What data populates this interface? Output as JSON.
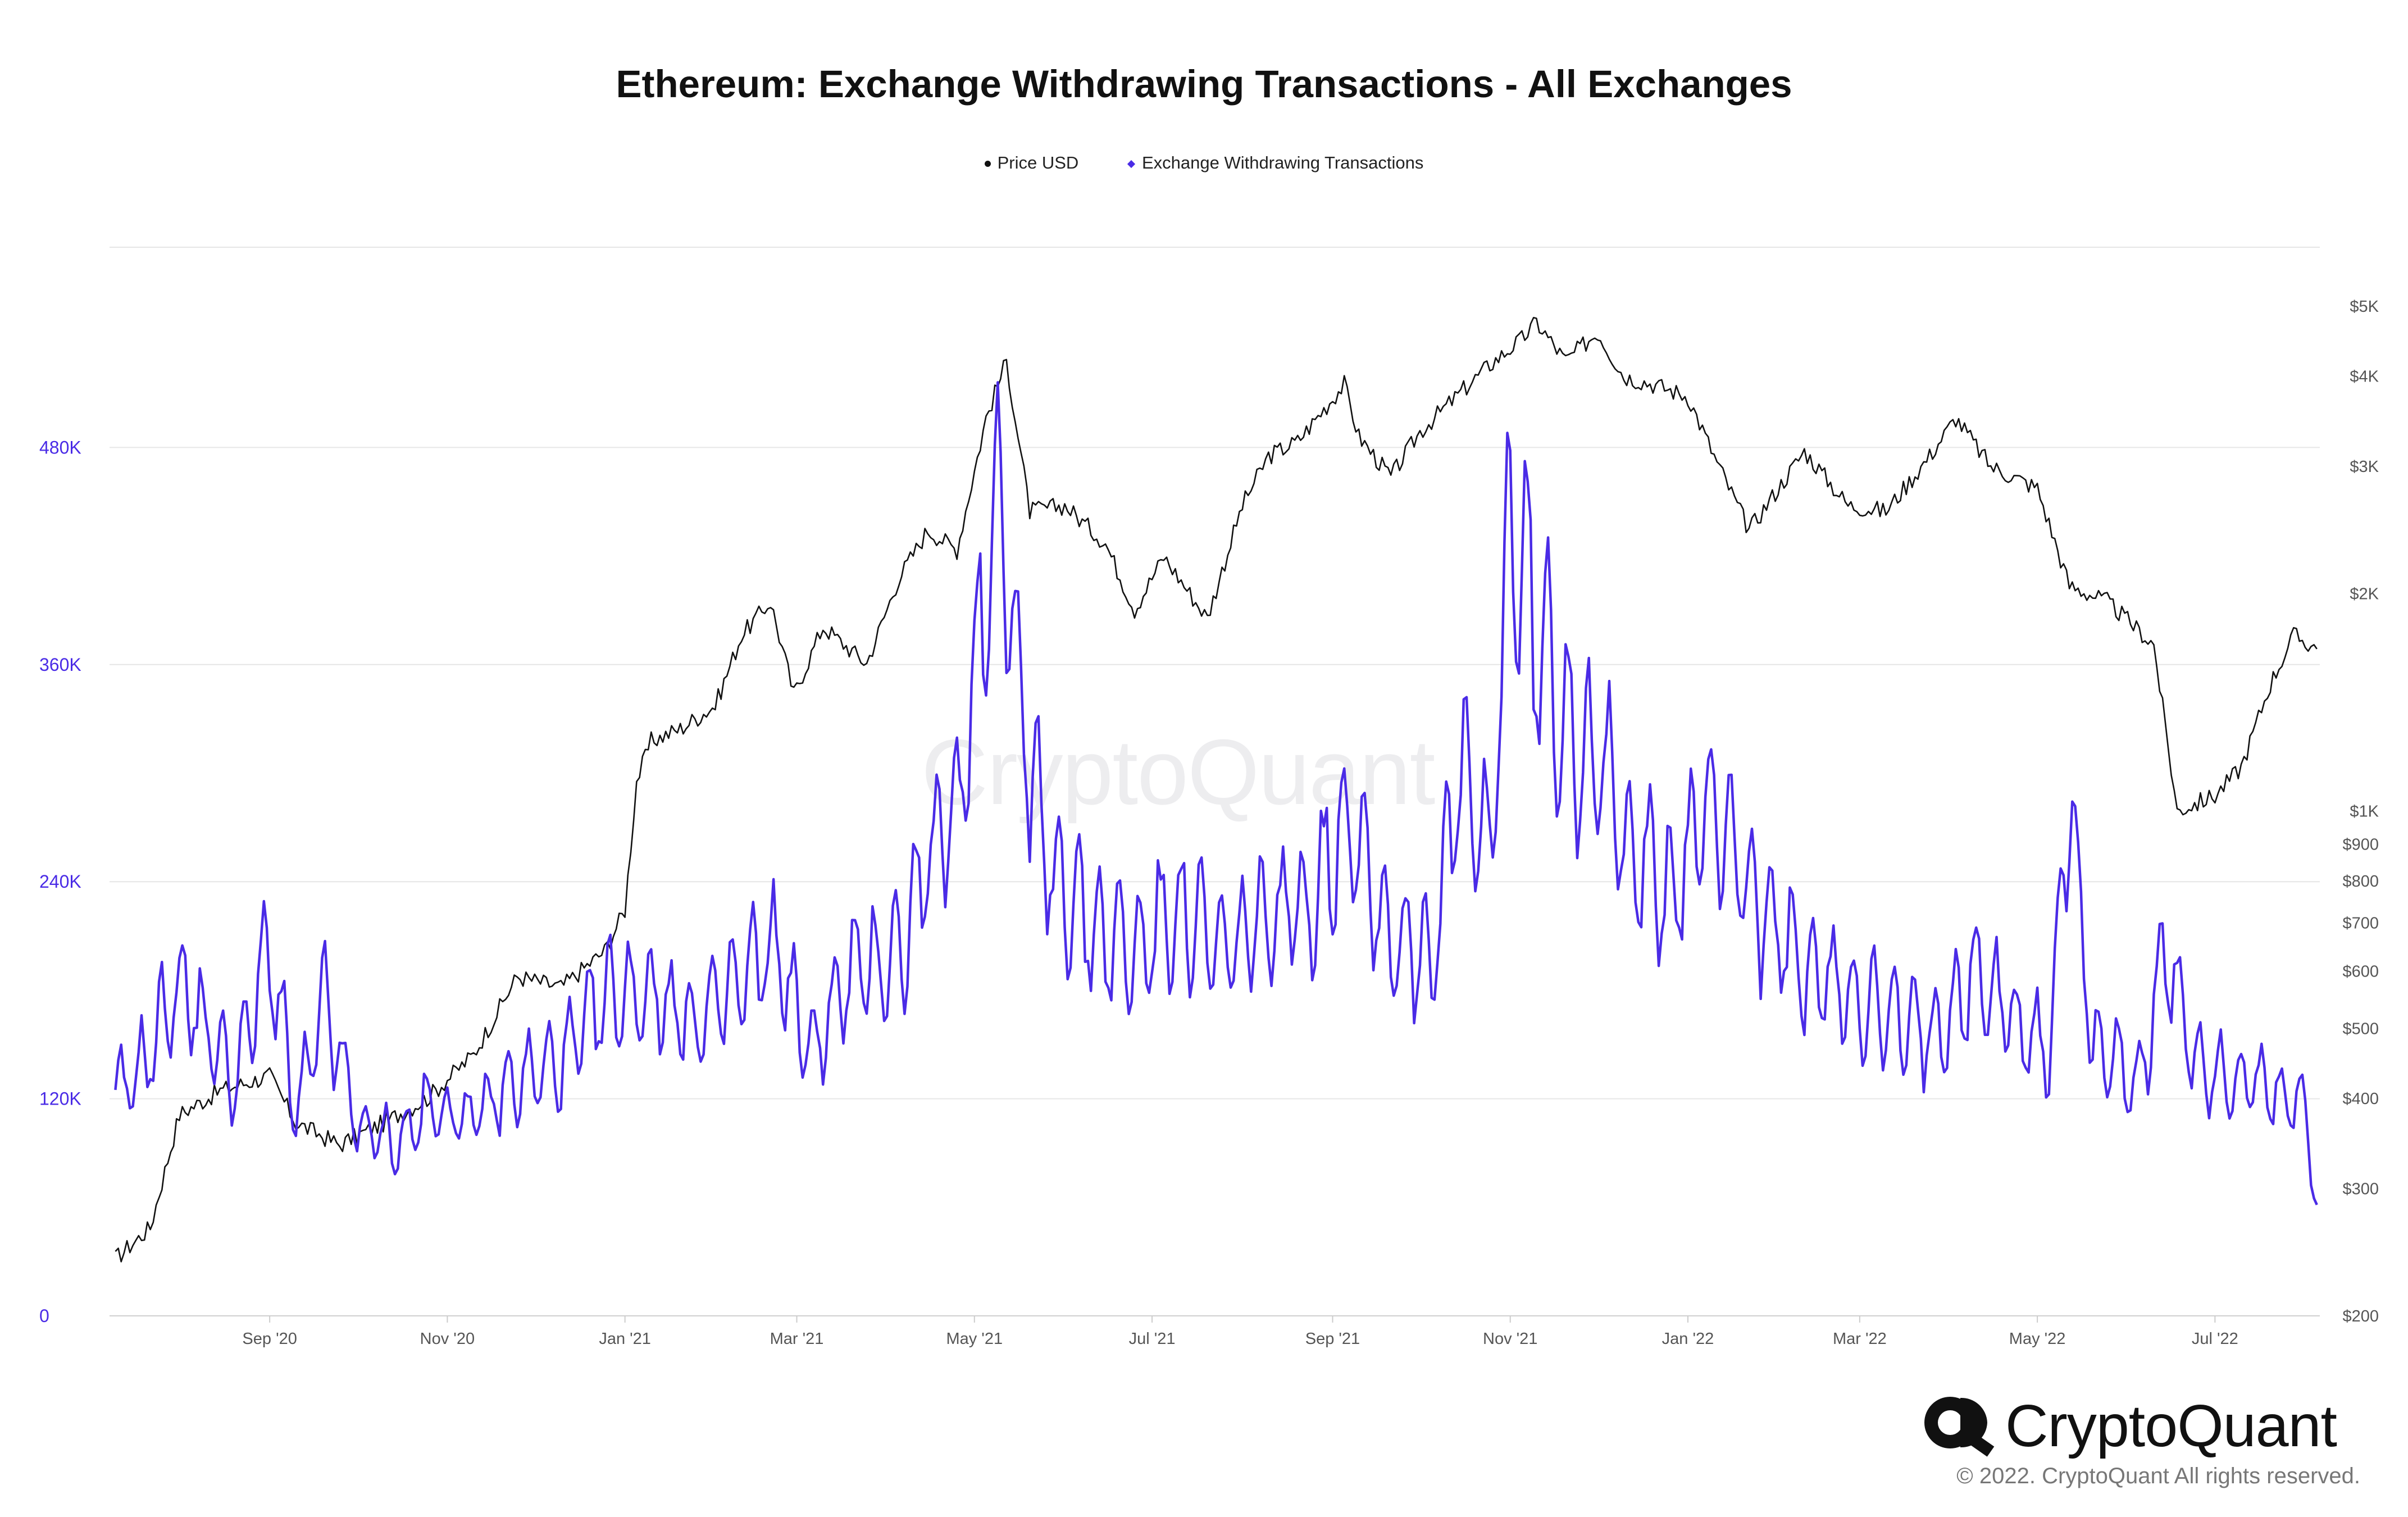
{
  "chart_data": {
    "type": "line",
    "title": "Ethereum: Exchange Withdrawing Transactions - All Exchanges",
    "legend": {
      "placement": "top-center"
    },
    "grid": true,
    "series": [
      {
        "name": "Price USD",
        "color": "#111111",
        "axis": "right",
        "scale": "log",
        "points": [
          [
            "2020-07-10",
            240
          ],
          [
            "2020-07-22",
            265
          ],
          [
            "2020-08-01",
            380
          ],
          [
            "2020-08-15",
            410
          ],
          [
            "2020-09-01",
            430
          ],
          [
            "2020-09-10",
            370
          ],
          [
            "2020-09-25",
            345
          ],
          [
            "2020-10-10",
            370
          ],
          [
            "2020-10-25",
            400
          ],
          [
            "2020-11-10",
            460
          ],
          [
            "2020-11-25",
            590
          ],
          [
            "2020-12-10",
            570
          ],
          [
            "2020-12-25",
            640
          ],
          [
            "2021-01-01",
            730
          ],
          [
            "2021-01-05",
            1100
          ],
          [
            "2021-01-10",
            1250
          ],
          [
            "2021-01-20",
            1300
          ],
          [
            "2021-02-01",
            1400
          ],
          [
            "2021-02-10",
            1750
          ],
          [
            "2021-02-20",
            1950
          ],
          [
            "2021-02-28",
            1450
          ],
          [
            "2021-03-10",
            1800
          ],
          [
            "2021-03-25",
            1600
          ],
          [
            "2021-04-05",
            2100
          ],
          [
            "2021-04-15",
            2450
          ],
          [
            "2021-04-25",
            2300
          ],
          [
            "2021-05-05",
            3500
          ],
          [
            "2021-05-12",
            4200
          ],
          [
            "2021-05-20",
            2600
          ],
          [
            "2021-06-01",
            2650
          ],
          [
            "2021-06-15",
            2350
          ],
          [
            "2021-06-25",
            1900
          ],
          [
            "2021-07-05",
            2250
          ],
          [
            "2021-07-20",
            1850
          ],
          [
            "2021-08-01",
            2650
          ],
          [
            "2021-08-10",
            3100
          ],
          [
            "2021-08-20",
            3250
          ],
          [
            "2021-09-05",
            3900
          ],
          [
            "2021-09-10",
            3300
          ],
          [
            "2021-09-21",
            2900
          ],
          [
            "2021-10-01",
            3350
          ],
          [
            "2021-10-15",
            3800
          ],
          [
            "2021-10-25",
            4150
          ],
          [
            "2021-11-05",
            4500
          ],
          [
            "2021-11-10",
            4750
          ],
          [
            "2021-11-20",
            4200
          ],
          [
            "2021-12-01",
            4600
          ],
          [
            "2021-12-10",
            4000
          ],
          [
            "2021-12-20",
            3900
          ],
          [
            "2022-01-01",
            3750
          ],
          [
            "2022-01-10",
            3100
          ],
          [
            "2022-01-22",
            2450
          ],
          [
            "2022-02-10",
            3150
          ],
          [
            "2022-02-25",
            2650
          ],
          [
            "2022-03-10",
            2600
          ],
          [
            "2022-03-25",
            3100
          ],
          [
            "2022-04-03",
            3500
          ],
          [
            "2022-04-15",
            3000
          ],
          [
            "2022-05-01",
            2800
          ],
          [
            "2022-05-12",
            2050
          ],
          [
            "2022-05-25",
            1950
          ],
          [
            "2022-06-10",
            1700
          ],
          [
            "2022-06-18",
            1000
          ],
          [
            "2022-07-01",
            1050
          ],
          [
            "2022-07-10",
            1150
          ],
          [
            "2022-07-20",
            1500
          ],
          [
            "2022-07-28",
            1750
          ],
          [
            "2022-08-05",
            1680
          ]
        ]
      },
      {
        "name": "Exchange Withdrawing Transactions",
        "color": "#4a2be6",
        "axis": "left",
        "scale": "linear",
        "points": [
          [
            "2020-07-10",
            120000
          ],
          [
            "2020-07-20",
            140000
          ],
          [
            "2020-08-01",
            185000
          ],
          [
            "2020-08-10",
            160000
          ],
          [
            "2020-08-20",
            130000
          ],
          [
            "2020-09-01",
            205000
          ],
          [
            "2020-09-10",
            110000
          ],
          [
            "2020-09-20",
            175000
          ],
          [
            "2020-10-01",
            105000
          ],
          [
            "2020-10-15",
            95000
          ],
          [
            "2020-10-25",
            115000
          ],
          [
            "2020-11-10",
            110000
          ],
          [
            "2020-11-25",
            130000
          ],
          [
            "2020-12-10",
            140000
          ],
          [
            "2020-12-25",
            175000
          ],
          [
            "2021-01-10",
            180000
          ],
          [
            "2021-01-25",
            160000
          ],
          [
            "2021-02-10",
            185000
          ],
          [
            "2021-02-22",
            205000
          ],
          [
            "2021-03-05",
            145000
          ],
          [
            "2021-03-20",
            190000
          ],
          [
            "2021-04-05",
            200000
          ],
          [
            "2021-04-15",
            250000
          ],
          [
            "2021-04-25",
            280000
          ],
          [
            "2021-05-10",
            470000
          ],
          [
            "2021-05-15",
            360000
          ],
          [
            "2021-05-25",
            255000
          ],
          [
            "2021-06-10",
            215000
          ],
          [
            "2021-06-25",
            200000
          ],
          [
            "2021-07-10",
            225000
          ],
          [
            "2021-07-25",
            200000
          ],
          [
            "2021-08-10",
            220000
          ],
          [
            "2021-08-25",
            230000
          ],
          [
            "2021-09-07",
            280000
          ],
          [
            "2021-09-20",
            210000
          ],
          [
            "2021-10-05",
            200000
          ],
          [
            "2021-10-15",
            300000
          ],
          [
            "2021-10-25",
            250000
          ],
          [
            "2021-11-01",
            445000
          ],
          [
            "2021-11-10",
            375000
          ],
          [
            "2021-11-20",
            330000
          ],
          [
            "2021-12-01",
            305000
          ],
          [
            "2021-12-10",
            270000
          ],
          [
            "2021-12-25",
            230000
          ],
          [
            "2022-01-10",
            285000
          ],
          [
            "2022-01-25",
            225000
          ],
          [
            "2022-02-10",
            190000
          ],
          [
            "2022-02-25",
            180000
          ],
          [
            "2022-03-10",
            165000
          ],
          [
            "2022-03-25",
            155000
          ],
          [
            "2022-04-10",
            190000
          ],
          [
            "2022-04-25",
            160000
          ],
          [
            "2022-05-05",
            145000
          ],
          [
            "2022-05-12",
            290000
          ],
          [
            "2022-05-20",
            150000
          ],
          [
            "2022-06-05",
            130000
          ],
          [
            "2022-06-14",
            200000
          ],
          [
            "2022-06-25",
            140000
          ],
          [
            "2022-07-10",
            130000
          ],
          [
            "2022-07-25",
            120000
          ],
          [
            "2022-08-01",
            115000
          ],
          [
            "2022-08-05",
            60000
          ]
        ]
      }
    ],
    "x_axis": {
      "range": [
        "2020-07-08",
        "2022-08-06"
      ],
      "ticks": [
        {
          "date": "2020-09-01",
          "label": "Sep '20"
        },
        {
          "date": "2020-11-01",
          "label": "Nov '20"
        },
        {
          "date": "2021-01-01",
          "label": "Jan '21"
        },
        {
          "date": "2021-03-01",
          "label": "Mar '21"
        },
        {
          "date": "2021-05-01",
          "label": "May '21"
        },
        {
          "date": "2021-07-01",
          "label": "Jul '21"
        },
        {
          "date": "2021-09-01",
          "label": "Sep '21"
        },
        {
          "date": "2021-11-01",
          "label": "Nov '21"
        },
        {
          "date": "2022-01-01",
          "label": "Jan '22"
        },
        {
          "date": "2022-03-01",
          "label": "Mar '22"
        },
        {
          "date": "2022-05-01",
          "label": "May '22"
        },
        {
          "date": "2022-07-01",
          "label": "Jul '22"
        }
      ]
    },
    "y_left": {
      "range": [
        0,
        600000
      ],
      "ticks": [
        {
          "value": 0,
          "label": "0"
        },
        {
          "value": 120000,
          "label": "120K"
        },
        {
          "value": 240000,
          "label": "240K"
        },
        {
          "value": 360000,
          "label": "360K"
        },
        {
          "value": 480000,
          "label": "480K"
        }
      ]
    },
    "y_right": {
      "scale": "log",
      "range": [
        200,
        6000
      ],
      "ticks": [
        {
          "value": 200,
          "label": "$200"
        },
        {
          "value": 300,
          "label": "$300"
        },
        {
          "value": 400,
          "label": "$400"
        },
        {
          "value": 500,
          "label": "$500"
        },
        {
          "value": 600,
          "label": "$600"
        },
        {
          "value": 700,
          "label": "$700"
        },
        {
          "value": 800,
          "label": "$800"
        },
        {
          "value": 900,
          "label": "$900"
        },
        {
          "value": 1000,
          "label": "$1K"
        },
        {
          "value": 2000,
          "label": "$2K"
        },
        {
          "value": 3000,
          "label": "$3K"
        },
        {
          "value": 4000,
          "label": "$4K"
        },
        {
          "value": 5000,
          "label": "$5K"
        }
      ]
    }
  },
  "watermark": "CryptoQuant",
  "brand": {
    "name": "CryptoQuant",
    "copyright": "© 2022. CryptoQuant All rights reserved."
  }
}
